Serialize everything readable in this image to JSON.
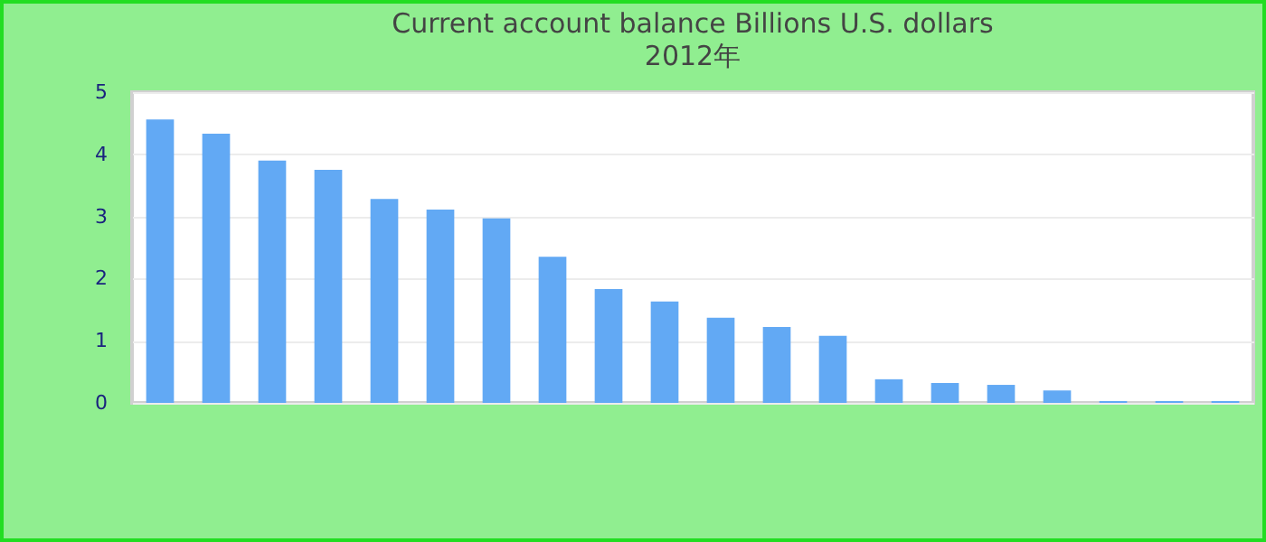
{
  "chart_data": {
    "type": "bar",
    "title": "Current account balance Billions U.S. dollars",
    "subtitle": "2012年",
    "categories": [
      null,
      null,
      null,
      null,
      null,
      null,
      null,
      null,
      null,
      null,
      null,
      null,
      null,
      null,
      null,
      null,
      null,
      null,
      null,
      null
    ],
    "values": [
      4.56,
      4.33,
      3.9,
      3.75,
      3.28,
      3.11,
      2.97,
      2.35,
      1.83,
      1.63,
      1.37,
      1.22,
      1.08,
      0.38,
      0.32,
      0.29,
      0.2,
      0.03,
      0.03,
      0.03
    ],
    "color": "#62a9f4",
    "ylim": [
      0,
      5
    ],
    "yticks": [
      0,
      1,
      2,
      3,
      4,
      5
    ],
    "grid": "y"
  }
}
